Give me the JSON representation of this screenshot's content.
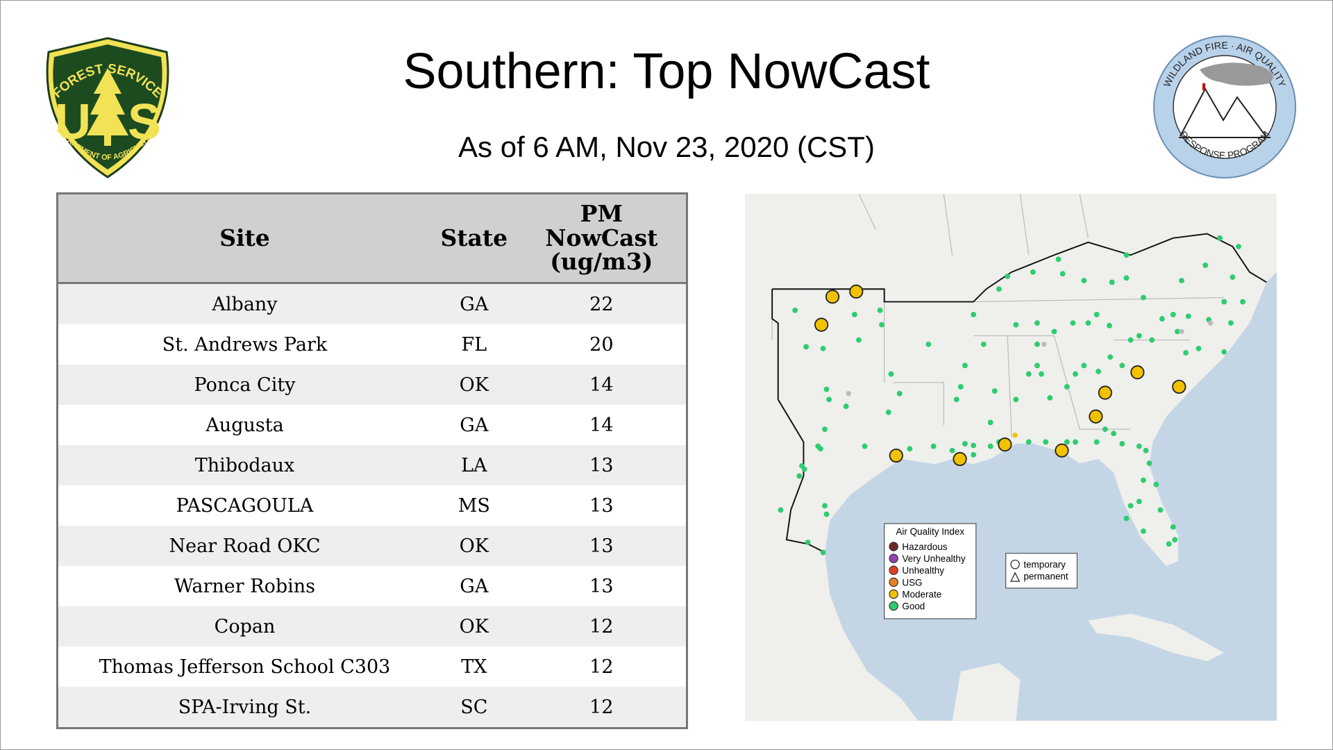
{
  "header": {
    "title": "Southern: Top NowCast",
    "subtitle": "As of  6 AM, Nov 23, 2020 (CST)"
  },
  "logos": {
    "forest_service": {
      "top": "FOREST SERVICE",
      "left_letter": "U",
      "right_letter": "S",
      "bottom": "DEPARTMENT OF AGRICULTURE"
    },
    "air_quality": {
      "top": "WILDLAND FIRE · AIR QUALITY",
      "bottom": "RESPONSE PROGRAM"
    }
  },
  "table": {
    "columns": [
      "Site",
      "State",
      "PM NowCast (ug/m3)"
    ],
    "rows": [
      [
        "Albany",
        "GA",
        22
      ],
      [
        "St. Andrews Park",
        "FL",
        20
      ],
      [
        "Ponca City",
        "OK",
        14
      ],
      [
        "Augusta",
        "GA",
        14
      ],
      [
        "Thibodaux",
        "LA",
        13
      ],
      [
        "PASCAGOULA",
        "MS",
        13
      ],
      [
        "Near Road OKC",
        "OK",
        13
      ],
      [
        "Warner Robins",
        "GA",
        13
      ],
      [
        "Copan",
        "OK",
        12
      ],
      [
        "Thomas Jefferson School C303",
        "TX",
        12
      ],
      [
        "SPA-Irving St.",
        "SC",
        12
      ]
    ]
  },
  "map": {
    "legend": {
      "title": "Air Quality Index",
      "items": [
        "Hazardous",
        "Very Unhealthy",
        "Unhealthy",
        "USG",
        "Moderate",
        "Good"
      ]
    },
    "shapes": [
      "temporary",
      "permanent"
    ]
  }
}
